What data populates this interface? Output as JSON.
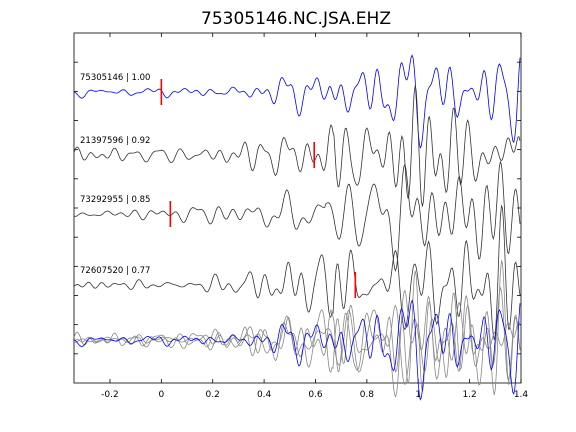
{
  "chart_data": {
    "type": "line",
    "title": "75305146.NC.JSA.EHZ",
    "xlabel": "",
    "ylabel": "",
    "xlim": [
      -0.34,
      1.4
    ],
    "x_ticks": [
      -0.2,
      0,
      0.2,
      0.4,
      0.6,
      0.8,
      1,
      1.2,
      1.4
    ],
    "x_tick_labels": [
      "-0.2",
      "0",
      "0.2",
      "0.4",
      "0.6",
      "0.8",
      "1",
      "1.2",
      "1.4"
    ],
    "y_tick_count": 12,
    "grid": false,
    "colors": {
      "reference": "#0000ff",
      "trace": "#333333",
      "overlay": "#888888",
      "pick": "#ff0000"
    },
    "traces": [
      {
        "name": "75305146",
        "cc": "1.00",
        "label": "75305146 | 1.00",
        "color": "#0000ff",
        "pick_time": 0.0
      },
      {
        "name": "21397596",
        "cc": "0.92",
        "label": "21397596 | 0.92",
        "color": "#333333",
        "pick_time": 0.595
      },
      {
        "name": "73292955",
        "cc": "0.85",
        "label": "73292955 | 0.85",
        "color": "#333333",
        "pick_time": 0.035
      },
      {
        "name": "72607520",
        "cc": "0.77",
        "label": "72607520 | 0.77",
        "color": "#333333",
        "pick_time": 0.755
      }
    ],
    "stack": {
      "description": "overlay of all traces",
      "reference_color": "#0000ff",
      "others_color": "#888888"
    }
  }
}
